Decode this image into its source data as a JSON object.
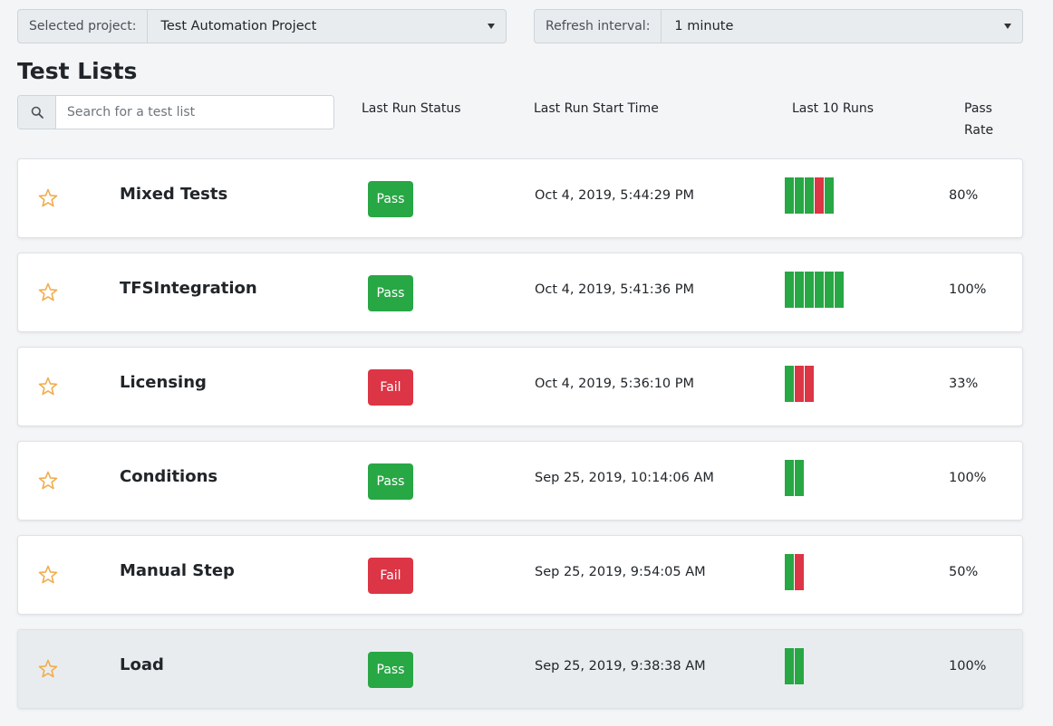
{
  "header": {
    "project_label": "Selected project:",
    "project_value": "Test Automation Project",
    "refresh_label": "Refresh interval:",
    "refresh_value": "1 minute"
  },
  "page_title": "Test Lists",
  "search": {
    "placeholder": "Search for a test list",
    "value": ""
  },
  "columns": {
    "status": "Last Run Status",
    "start_time": "Last Run Start Time",
    "last_runs": "Last 10 Runs",
    "pass_rate_line1": "Pass",
    "pass_rate_line2": "Rate"
  },
  "colors": {
    "pass": "#28a745",
    "fail": "#dc3545",
    "star": "#f0ad4e"
  },
  "icons": {
    "search": "search-icon",
    "favorite": "star-outline-icon",
    "dropdown": "caret-down-icon"
  },
  "rows": [
    {
      "name": "Mixed Tests",
      "status": "Pass",
      "time": "Oct 4, 2019, 5:44:29 PM",
      "runs": [
        "pass",
        "pass",
        "pass",
        "fail",
        "pass"
      ],
      "rate": "80%"
    },
    {
      "name": "TFSIntegration",
      "status": "Pass",
      "time": "Oct 4, 2019, 5:41:36 PM",
      "runs": [
        "pass",
        "pass",
        "pass",
        "pass",
        "pass",
        "pass"
      ],
      "rate": "100%"
    },
    {
      "name": "Licensing",
      "status": "Fail",
      "time": "Oct 4, 2019, 5:36:10 PM",
      "runs": [
        "pass",
        "fail",
        "fail"
      ],
      "rate": "33%"
    },
    {
      "name": "Conditions",
      "status": "Pass",
      "time": "Sep 25, 2019, 10:14:06 AM",
      "runs": [
        "pass",
        "pass"
      ],
      "rate": "100%"
    },
    {
      "name": "Manual Step",
      "status": "Fail",
      "time": "Sep 25, 2019, 9:54:05 AM",
      "runs": [
        "pass",
        "fail"
      ],
      "rate": "50%"
    },
    {
      "name": "Load",
      "status": "Pass",
      "time": "Sep 25, 2019, 9:38:38 AM",
      "runs": [
        "pass",
        "pass"
      ],
      "rate": "100%"
    }
  ]
}
